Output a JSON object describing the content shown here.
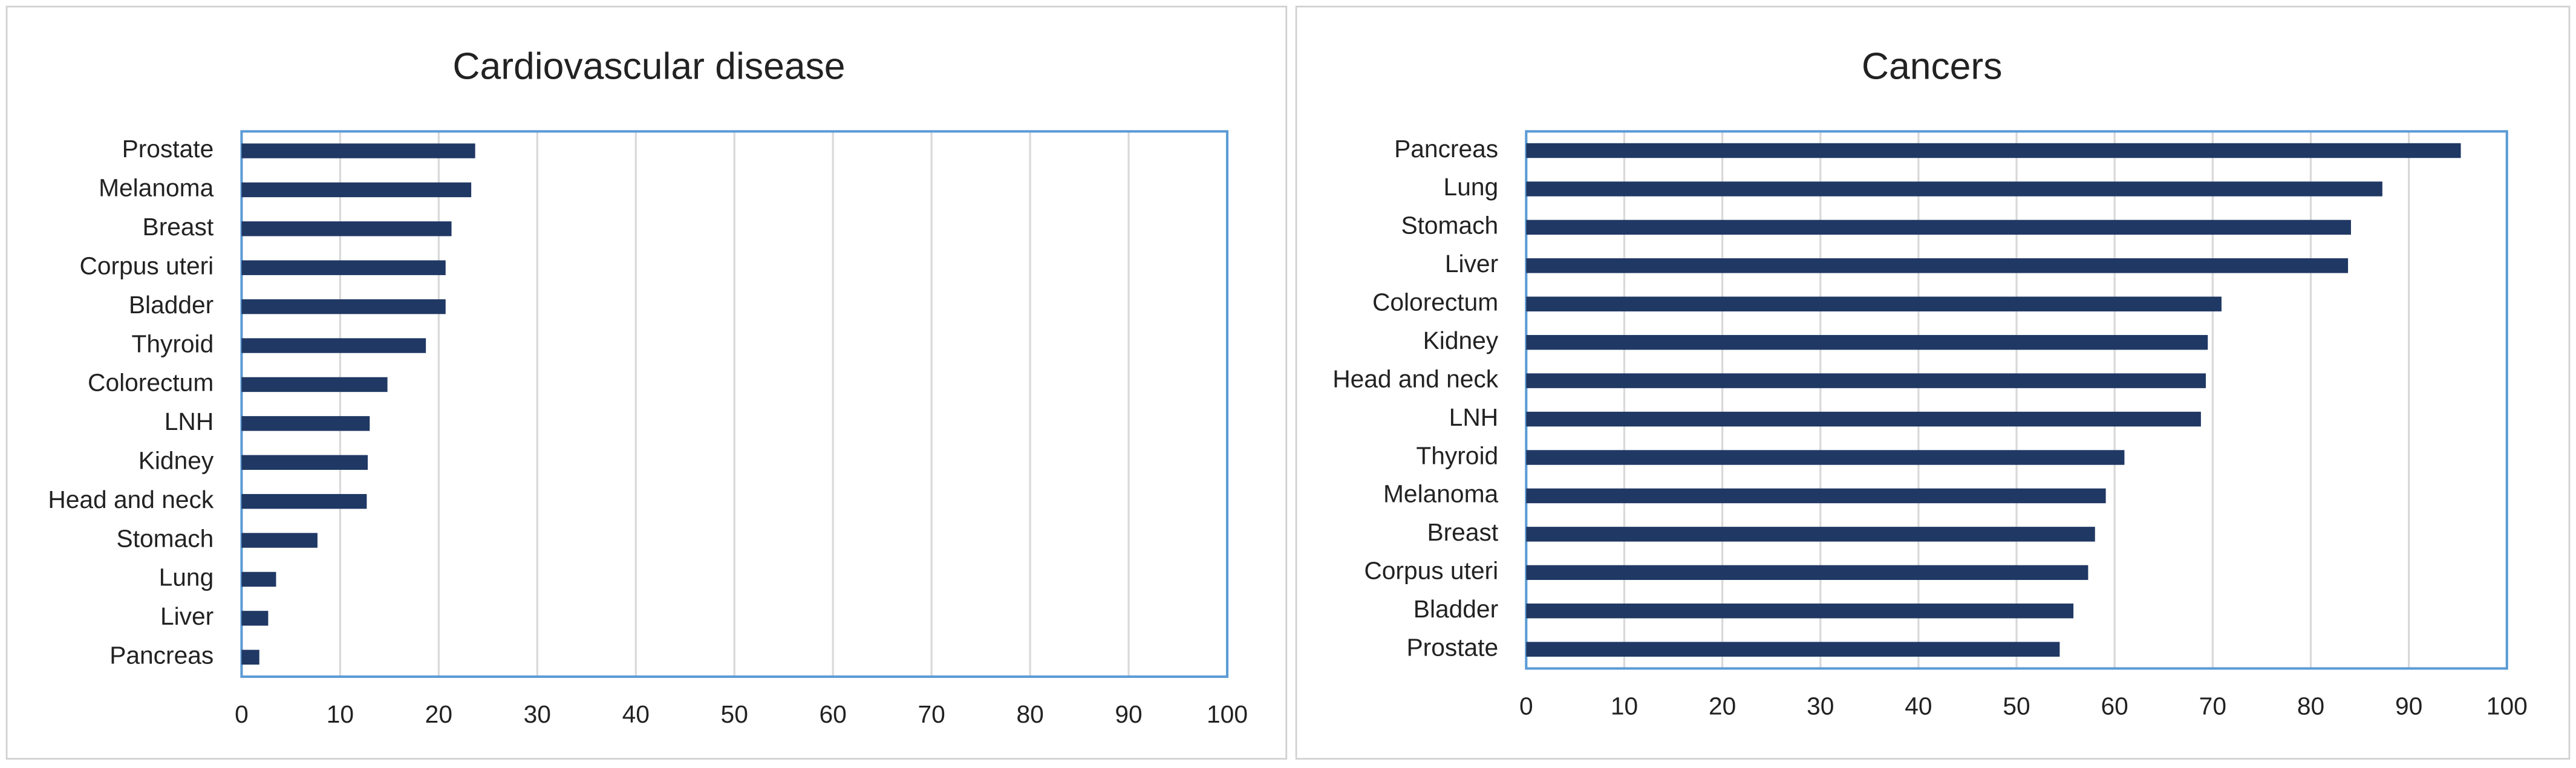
{
  "chart_data": [
    {
      "type": "bar",
      "orientation": "horizontal",
      "title": "Cardiovascular disease",
      "categories": [
        "Prostate",
        "Melanoma",
        "Breast",
        "Corpus uteri",
        "Bladder",
        "Thyroid",
        "Colorectum",
        "LNH",
        "Kidney",
        "Head and neck",
        "Stomach",
        "Lung",
        "Liver",
        "Pancreas"
      ],
      "values": [
        23.7,
        23.3,
        21.3,
        20.7,
        20.7,
        18.7,
        14.8,
        13,
        12.8,
        12.7,
        7.7,
        3.5,
        2.7,
        1.8
      ],
      "color": "#203864",
      "xlim": [
        0,
        100
      ],
      "xticks": [
        0,
        10,
        20,
        30,
        40,
        50,
        60,
        70,
        80,
        90,
        100
      ],
      "grid": true
    },
    {
      "type": "bar",
      "orientation": "horizontal",
      "title": "Cancers",
      "categories": [
        "Pancreas",
        "Lung",
        "Stomach",
        "Liver",
        "Colorectum",
        "Kidney",
        "Head and neck",
        "LNH",
        "Thyroid",
        "Melanoma",
        "Breast",
        "Corpus uteri",
        "Bladder",
        "Prostate"
      ],
      "values": [
        95.3,
        87.3,
        84.1,
        83.8,
        70.9,
        69.5,
        69.3,
        68.8,
        61,
        59.1,
        58,
        57.3,
        55.8,
        54.4
      ],
      "color": "#203864",
      "xlim": [
        0,
        100
      ],
      "xticks": [
        0,
        10,
        20,
        30,
        40,
        50,
        60,
        70,
        80,
        90,
        100
      ],
      "grid": true
    }
  ]
}
